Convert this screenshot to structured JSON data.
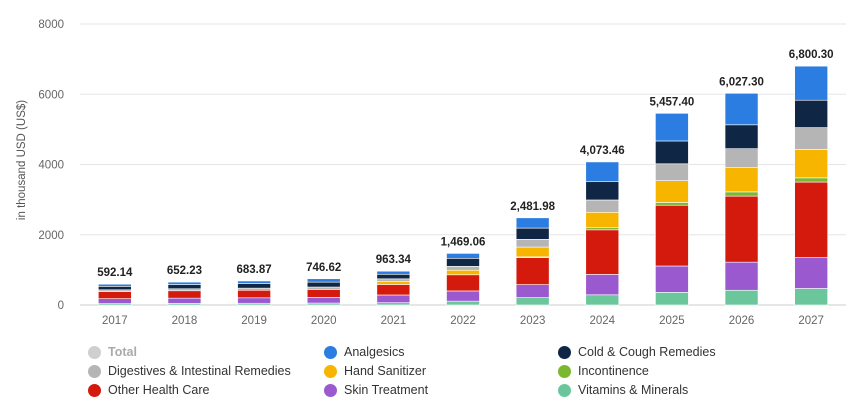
{
  "chart_data": {
    "type": "bar",
    "stacked": true,
    "ylabel": "in thousand USD (US$)",
    "ylim": [
      0,
      8000
    ],
    "yticks": [
      0,
      2000,
      4000,
      6000,
      8000
    ],
    "ytick_labels": [
      "0",
      "2000",
      "4000",
      "6000",
      "8000"
    ],
    "grid": true,
    "legend_position": "bottom",
    "categories": [
      "2017",
      "2018",
      "2019",
      "2020",
      "2021",
      "2022",
      "2023",
      "2024",
      "2025",
      "2026",
      "2027"
    ],
    "totals": [
      592.14,
      652.23,
      683.87,
      746.62,
      963.34,
      1469.06,
      2481.98,
      4073.46,
      5457.4,
      6027.3,
      6800.3
    ],
    "total_labels": [
      "592.14",
      "652.23",
      "683.87",
      "746.62",
      "963.34",
      "1,469.06",
      "2,481.98",
      "4,073.46",
      "5,457.40",
      "6,027.30",
      "6,800.30"
    ],
    "series": [
      {
        "name": "Vitamins & Minerals",
        "color": "#6cc69b",
        "values": [
          40,
          45,
          50,
          55,
          65,
          110,
          210,
          290,
          360,
          420,
          470
        ]
      },
      {
        "name": "Skin Treatment",
        "color": "#9b59d0",
        "values": [
          140,
          150,
          155,
          160,
          220,
          290,
          370,
          580,
          750,
          800,
          880
        ]
      },
      {
        "name": "Other Health Care",
        "color": "#d41a0c",
        "values": [
          200,
          210,
          215,
          230,
          300,
          460,
          770,
          1270,
          1730,
          1880,
          2150
        ]
      },
      {
        "name": "Incontinence",
        "color": "#7cb82f",
        "values": [
          0,
          0,
          0,
          0,
          0,
          0,
          20,
          60,
          80,
          120,
          120
        ]
      },
      {
        "name": "Hand Sanitizer",
        "color": "#f7b500",
        "values": [
          0,
          0,
          0,
          0,
          80,
          130,
          280,
          440,
          620,
          690,
          810
        ]
      },
      {
        "name": "Digestives & Intestinal Remedies",
        "color": "#b5b5b5",
        "values": [
          52,
          57,
          60,
          66,
          80,
          110,
          220,
          350,
          480,
          540,
          620
        ]
      },
      {
        "name": "Cold & Cough Remedies",
        "color": "#0f2744",
        "values": [
          100,
          120,
          130,
          140,
          130,
          230,
          320,
          520,
          650,
          680,
          780
        ]
      },
      {
        "name": "Analgesics",
        "color": "#2b7de1",
        "values": [
          60,
          70,
          74,
          96,
          88,
          139.06,
          291.98,
          563.46,
          787.4,
          897.3,
          970.3
        ]
      }
    ],
    "legend": [
      {
        "name": "Total",
        "color": "#cfcfcf",
        "muted": true
      },
      {
        "name": "Analgesics",
        "color": "#2b7de1"
      },
      {
        "name": "Cold & Cough Remedies",
        "color": "#0f2744"
      },
      {
        "name": "Digestives & Intestinal Remedies",
        "color": "#b5b5b5"
      },
      {
        "name": "Hand Sanitizer",
        "color": "#f7b500"
      },
      {
        "name": "Incontinence",
        "color": "#7cb82f"
      },
      {
        "name": "Other Health Care",
        "color": "#d41a0c"
      },
      {
        "name": "Skin Treatment",
        "color": "#9b59d0"
      },
      {
        "name": "Vitamins & Minerals",
        "color": "#6cc69b"
      }
    ]
  }
}
